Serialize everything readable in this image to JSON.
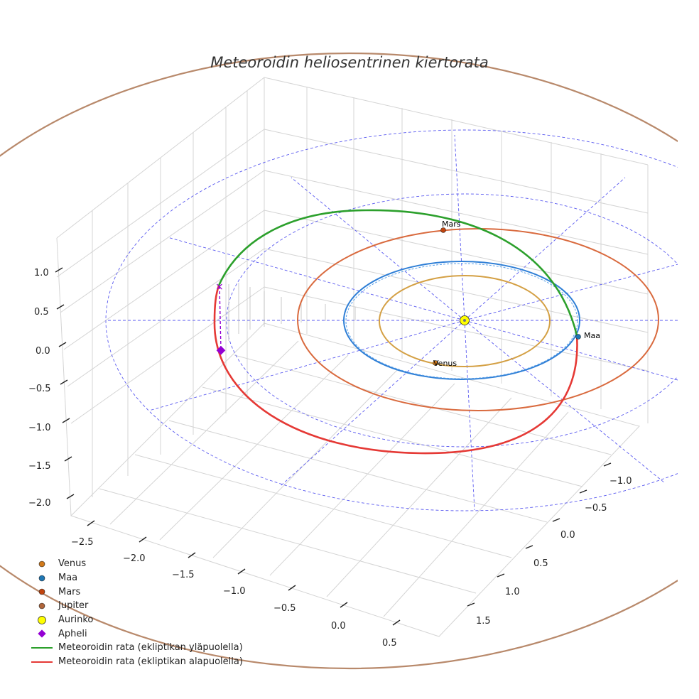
{
  "chart_data": {
    "type": "scatter3d",
    "title": "Meteoroidin heliosentrinen kiertorata",
    "axes": {
      "x": {
        "ticks": [
          -2.5,
          -2.0,
          -1.5,
          -1.0,
          -0.5,
          0.0,
          0.5
        ],
        "tick_labels": [
          "−2.5",
          "−2.0",
          "−1.5",
          "−1.0",
          "−0.5",
          "0.0",
          "0.5"
        ]
      },
      "y": {
        "ticks": [
          -1.0,
          -0.5,
          0.0,
          0.5,
          1.0,
          1.5
        ],
        "tick_labels": [
          "−1.0",
          "−0.5",
          "0.0",
          "0.5",
          "1.0",
          "1.5"
        ]
      },
      "z": {
        "ticks": [
          1.0,
          0.5,
          0.0,
          -0.5,
          -1.0,
          -1.5,
          -2.0
        ],
        "tick_labels": [
          "1.0",
          "0.5",
          "0.0",
          "−0.5",
          "−1.0",
          "−1.5",
          "−2.0"
        ]
      }
    },
    "planet_orbits": [
      {
        "name": "Venus",
        "radius_au": 0.72,
        "color": "#d4a044"
      },
      {
        "name": "Maa",
        "radius_au": 1.0,
        "color": "#2f7fd6"
      },
      {
        "name": "Mars",
        "radius_au": 1.52,
        "color": "#d96a3e"
      },
      {
        "name": "Jupiter",
        "radius_au": 5.2,
        "color": "#b8896b"
      }
    ],
    "planets": [
      {
        "name": "Venus",
        "label": "Venus",
        "color": "#d17a1b"
      },
      {
        "name": "Maa",
        "label": "Maa",
        "color": "#1f77b4"
      },
      {
        "name": "Mars",
        "label": "Mars",
        "color": "#c1440e"
      }
    ],
    "sun": {
      "name": "Aurinko",
      "color": "#ffff00"
    },
    "meteoroid_orbit": {
      "above_ecliptic_color": "#2ca02c",
      "below_ecliptic_color": "#e53935",
      "aphelion_color": "#9400d3"
    }
  },
  "legend": [
    {
      "label": "Venus",
      "symbol": "dot",
      "color": "#d17a1b"
    },
    {
      "label": "Maa",
      "symbol": "dot",
      "color": "#1f77b4"
    },
    {
      "label": "Mars",
      "symbol": "dot",
      "color": "#c1440e"
    },
    {
      "label": "Jupiter",
      "symbol": "dot",
      "color": "#b0653a"
    },
    {
      "label": "Aurinko",
      "symbol": "sun",
      "color": "#ffff00"
    },
    {
      "label": "Apheli",
      "symbol": "diamond",
      "color": "#9400d3"
    },
    {
      "label": "Meteoroidin rata (ekliptikan yläpuolella)",
      "symbol": "line",
      "color": "#2ca02c"
    },
    {
      "label": "Meteoroidin rata (ekliptikan alapuolella)",
      "symbol": "line",
      "color": "#e53935"
    }
  ]
}
